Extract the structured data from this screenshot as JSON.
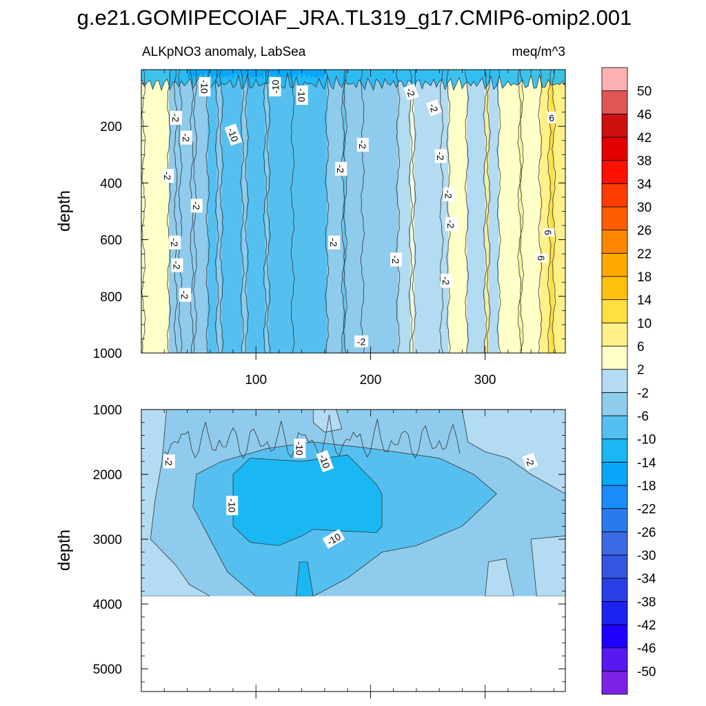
{
  "chart_data": {
    "type": "heatmap",
    "title": "g.e21.GOMIPECOIAF_JRA.TL319_g17.CMIP6-omip2.001",
    "left_subtitle": "ALKpNO3 anomaly, LabSea",
    "right_subtitle": "meq/m^3",
    "xlim": [
      0,
      370
    ],
    "x_ticks": [
      100,
      200,
      300
    ],
    "colorbar": {
      "levels": [
        -50,
        -46,
        -42,
        -38,
        -34,
        -30,
        -26,
        -22,
        -18,
        -14,
        -10,
        -6,
        -2,
        2,
        6,
        10,
        14,
        18,
        22,
        26,
        30,
        34,
        38,
        42,
        46,
        50
      ],
      "colors": [
        "#7b22e6",
        "#5a18f0",
        "#1f00ff",
        "#1a23f0",
        "#2a3fe8",
        "#3355e0",
        "#3a6ae2",
        "#2b79ef",
        "#1a8cf7",
        "#0aa6fa",
        "#1ab8f3",
        "#55c0f0",
        "#8fcbec",
        "#b3dbf2",
        "#ffffc8",
        "#fff08a",
        "#ffe040",
        "#ffc010",
        "#ffaa00",
        "#ff8800",
        "#ff5e00",
        "#ff3d00",
        "#ff1000",
        "#e20000",
        "#cc1010",
        "#e05555",
        "#ffb0b0"
      ]
    },
    "panels": [
      {
        "name": "upper",
        "ylabel": "depth",
        "ylim": [
          0,
          1000
        ],
        "y_ticks": [
          200,
          400,
          600,
          800,
          1000
        ],
        "x_tick_labels_shown": true,
        "bands": [
          {
            "x0": 0,
            "x1": 24,
            "level": 2
          },
          {
            "x0": 24,
            "x1": 58,
            "level": -6
          },
          {
            "x0": 58,
            "x1": 132,
            "level": -10
          },
          {
            "x0": 132,
            "x1": 162,
            "level": -10
          },
          {
            "x0": 162,
            "x1": 224,
            "level": -6
          },
          {
            "x0": 224,
            "x1": 268,
            "level": -2
          },
          {
            "x0": 268,
            "x1": 284,
            "level": 2
          },
          {
            "x0": 284,
            "x1": 312,
            "level": -2
          },
          {
            "x0": 312,
            "x1": 348,
            "level": 2
          },
          {
            "x0": 348,
            "x1": 370,
            "level": 6
          }
        ],
        "contour_labels": [
          {
            "text": "-10",
            "x": 55,
            "y": 60,
            "rot": 90
          },
          {
            "text": "-10",
            "x": 117,
            "y": 60,
            "rot": -90
          },
          {
            "text": "-10",
            "x": 140,
            "y": 90,
            "rot": 90
          },
          {
            "text": "-10",
            "x": 80,
            "y": 230,
            "rot": 70
          },
          {
            "text": "-2",
            "x": 30,
            "y": 170,
            "rot": 90
          },
          {
            "text": "-2",
            "x": 39,
            "y": 240,
            "rot": 90
          },
          {
            "text": "-2",
            "x": 23,
            "y": 375,
            "rot": 90
          },
          {
            "text": "-2",
            "x": 48,
            "y": 480,
            "rot": 90
          },
          {
            "text": "-2",
            "x": 29,
            "y": 610,
            "rot": 90
          },
          {
            "text": "-2",
            "x": 31,
            "y": 690,
            "rot": 90
          },
          {
            "text": "-2",
            "x": 38,
            "y": 795,
            "rot": 90
          },
          {
            "text": "-2",
            "x": 193,
            "y": 265,
            "rot": 90
          },
          {
            "text": "-2",
            "x": 174,
            "y": 350,
            "rot": 90
          },
          {
            "text": "-2",
            "x": 168,
            "y": 610,
            "rot": 90
          },
          {
            "text": "-2",
            "x": 222,
            "y": 670,
            "rot": 90
          },
          {
            "text": "-2",
            "x": 192,
            "y": 960,
            "rot": 0
          },
          {
            "text": "-2",
            "x": 235,
            "y": 80,
            "rot": 70
          },
          {
            "text": "-2",
            "x": 255,
            "y": 135,
            "rot": 70
          },
          {
            "text": "-2",
            "x": 261,
            "y": 305,
            "rot": 90
          },
          {
            "text": "-2",
            "x": 268,
            "y": 440,
            "rot": 90
          },
          {
            "text": "-2",
            "x": 270,
            "y": 545,
            "rot": 90
          },
          {
            "text": "-2",
            "x": 266,
            "y": 745,
            "rot": 90
          },
          {
            "text": "6",
            "x": 358,
            "y": 170,
            "rot": 0
          },
          {
            "text": "6",
            "x": 355,
            "y": 575,
            "rot": 90
          },
          {
            "text": "6",
            "x": 349,
            "y": 665,
            "rot": 90
          }
        ]
      },
      {
        "name": "lower",
        "ylabel": "depth",
        "ylim": [
          1000,
          5350
        ],
        "y_ticks": [
          1000,
          2000,
          3000,
          4000,
          5000
        ],
        "x_tick_labels_shown": false,
        "data_bottom_depth": 3880,
        "contour_labels": [
          {
            "text": "-2",
            "x": 24,
            "y": 1800,
            "rot": 90
          },
          {
            "text": "-10",
            "x": 138,
            "y": 1600,
            "rot": 90
          },
          {
            "text": "-10",
            "x": 160,
            "y": 1800,
            "rot": 70
          },
          {
            "text": "-10",
            "x": 79,
            "y": 2480,
            "rot": 90
          },
          {
            "text": "-10",
            "x": 168,
            "y": 3000,
            "rot": -30
          },
          {
            "text": "-2",
            "x": 339,
            "y": 1800,
            "rot": 70
          }
        ]
      }
    ]
  }
}
